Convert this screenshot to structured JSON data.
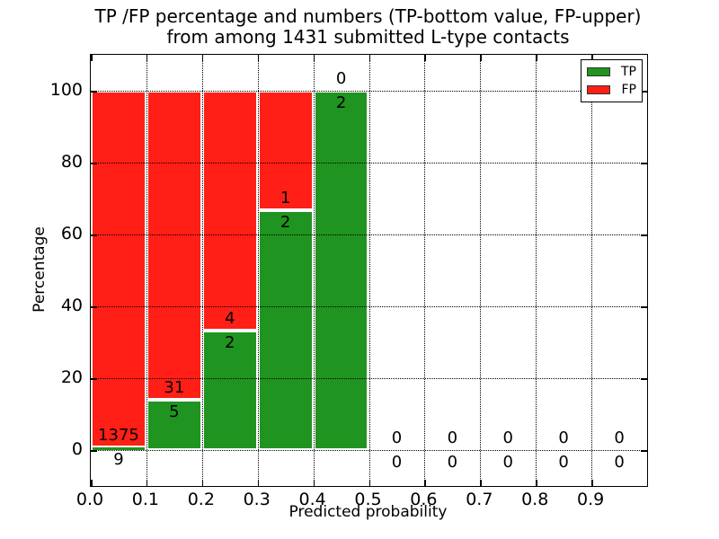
{
  "title": {
    "line1": "TP /FP percentage and numbers (TP-bottom value, FP-upper)",
    "line2": "from among 1431 submitted L-type contacts"
  },
  "axes": {
    "xlabel": "Predicted probability",
    "ylabel": "Percentage"
  },
  "legend": {
    "items": [
      {
        "label": "TP",
        "color": "#209420"
      },
      {
        "label": "FP",
        "color": "#ff1f16"
      }
    ]
  },
  "chart_data": {
    "type": "bar",
    "stacked": true,
    "normalized_to_percent": true,
    "title": "TP /FP percentage and numbers (TP-bottom value, FP-upper)\nfrom among 1431 submitted L-type contacts",
    "xlabel": "Predicted probability",
    "ylabel": "Percentage",
    "xlim": [
      0.0,
      1.0
    ],
    "ylim": [
      -10,
      110
    ],
    "xticks": [
      "0.0",
      "0.1",
      "0.2",
      "0.3",
      "0.4",
      "0.5",
      "0.6",
      "0.7",
      "0.8",
      "0.9"
    ],
    "yticks": [
      0,
      20,
      40,
      60,
      80,
      100
    ],
    "grid": true,
    "legend_position": "upper-right",
    "bin_width": 0.1,
    "bin_starts": [
      0.0,
      0.1,
      0.2,
      0.3,
      0.4,
      0.5,
      0.6,
      0.7,
      0.8,
      0.9
    ],
    "series": [
      {
        "name": "TP",
        "color": "#209420",
        "counts": [
          9,
          5,
          2,
          2,
          2,
          0,
          0,
          0,
          0,
          0
        ]
      },
      {
        "name": "FP",
        "color": "#ff1f16",
        "counts": [
          1375,
          31,
          4,
          1,
          0,
          0,
          0,
          0,
          0,
          0
        ]
      }
    ],
    "tp_percent_per_bin": [
      0.65,
      13.89,
      33.33,
      66.67,
      100.0,
      0,
      0,
      0,
      0,
      0
    ],
    "total_submitted": 1431
  }
}
